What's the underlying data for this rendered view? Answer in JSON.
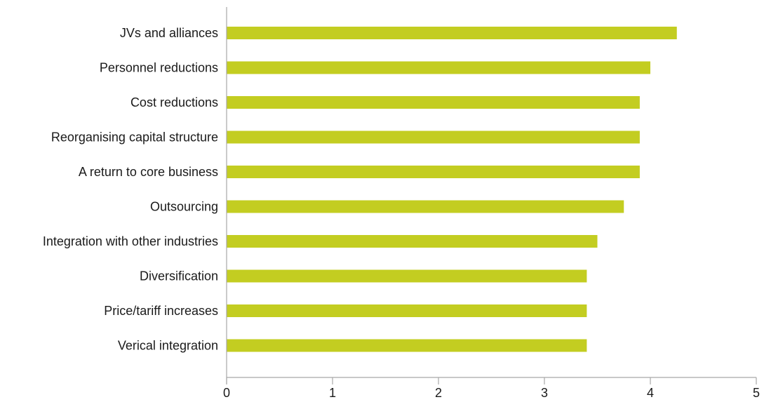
{
  "chart_data": {
    "type": "bar",
    "orientation": "horizontal",
    "categories": [
      "JVs and alliances",
      "Personnel reductions",
      "Cost reductions",
      "Reorganising capital structure",
      "A return to core business",
      "Outsourcing",
      "Integration with other industries",
      "Diversification",
      "Price/tariff increases",
      "Verical integration"
    ],
    "values": [
      4.25,
      4.0,
      3.9,
      3.9,
      3.9,
      3.75,
      3.5,
      3.4,
      3.4,
      3.4
    ],
    "xlim": [
      0,
      5
    ],
    "xticks": [
      "0",
      "1",
      "2",
      "3",
      "4",
      "5"
    ],
    "title": "",
    "xlabel": "",
    "ylabel": "",
    "grid": false,
    "bar_color": "#c3cd21",
    "axis_color": "#a8a8a8"
  }
}
